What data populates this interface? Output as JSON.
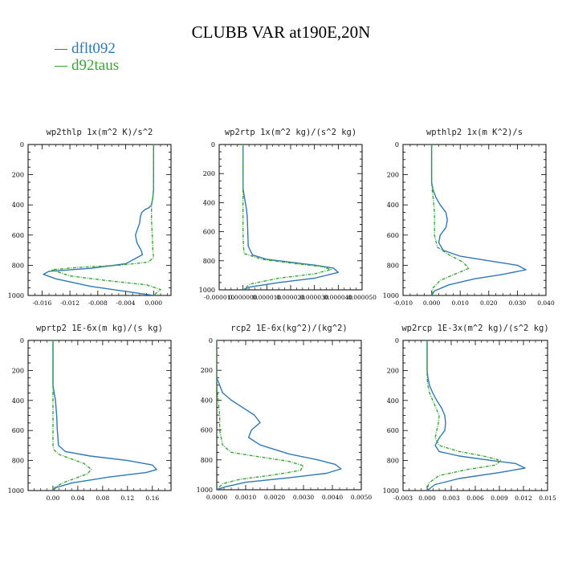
{
  "title": "CLUBB VAR at190E,20N",
  "legend": [
    {
      "label": "dflt092",
      "color": "#2f78b4"
    },
    {
      "label": "d92taus",
      "color": "#3aa535"
    }
  ],
  "chart_data": [
    {
      "type": "line",
      "title": "wp2thlp   1x(m^2 K)/s^2",
      "ylim": [
        1000,
        0
      ],
      "yticks": [
        0,
        200,
        400,
        600,
        800,
        1000
      ],
      "xlim": [
        -0.018,
        0.0025
      ],
      "xticks": [
        -0.016,
        -0.012,
        -0.008,
        -0.004,
        0.0
      ],
      "xtick_labels": [
        "-0.016",
        "-0.012",
        "-0.008",
        "-0.004",
        "0.000"
      ],
      "series": [
        {
          "name": "dflt092",
          "color": "#2f78b4",
          "dash": false,
          "x": [
            0.0,
            0.0,
            0.0,
            -0.0001,
            -0.0003,
            -0.0007,
            -0.0012,
            -0.0017,
            -0.0019,
            -0.002,
            -0.0023,
            -0.0026,
            -0.0024,
            -0.0018,
            -0.0016,
            -0.004,
            -0.009,
            -0.015,
            -0.0158,
            -0.014,
            -0.009,
            -0.003,
            0.0
          ],
          "y": [
            0,
            200,
            300,
            350,
            400,
            420,
            430,
            450,
            480,
            520,
            560,
            600,
            650,
            700,
            730,
            790,
            820,
            840,
            860,
            890,
            940,
            980,
            1000
          ]
        },
        {
          "name": "d92taus",
          "color": "#3aa535",
          "dash": true,
          "x": [
            0.0,
            0.0,
            0.0,
            -0.0001,
            -0.0003,
            -0.0003,
            -0.0003,
            -0.0002,
            -0.0001,
            0.0,
            -0.0008,
            -0.005,
            -0.011,
            -0.0147,
            -0.012,
            -0.007,
            -0.001,
            0.001,
            0.0
          ],
          "y": [
            0,
            200,
            300,
            350,
            400,
            450,
            500,
            600,
            700,
            750,
            780,
            800,
            815,
            830,
            870,
            900,
            930,
            960,
            1000
          ]
        }
      ]
    },
    {
      "type": "line",
      "title": "wp2rtp   1x(m^2 kg)/(s^2 kg)",
      "ylim": [
        1000,
        0
      ],
      "yticks": [
        0,
        200,
        400,
        600,
        800,
        1000
      ],
      "xlim": [
        -1e-05,
        5e-05
      ],
      "xticks": [
        -1e-05,
        0.0,
        1e-05,
        2e-05,
        3e-05,
        4e-05,
        5e-05
      ],
      "xtick_labels": [
        "-0.000010",
        "0.000000",
        "0.000010",
        "0.000020",
        "0.000030",
        "0.000040",
        "0.000050"
      ],
      "series": [
        {
          "name": "dflt092",
          "color": "#2f78b4",
          "dash": false,
          "x": [
            0.0,
            0.0,
            0.0,
            5e-07,
            1e-06,
            1.5e-06,
            1.8e-06,
            2e-06,
            2.2e-06,
            4e-06,
            1e-05,
            2e-05,
            3e-05,
            3.8e-05,
            4e-05,
            3e-05,
            1.5e-05,
            3e-06,
            0.0
          ],
          "y": [
            0,
            200,
            300,
            350,
            400,
            450,
            500,
            600,
            700,
            760,
            790,
            810,
            830,
            850,
            880,
            920,
            950,
            980,
            1000
          ]
        },
        {
          "name": "d92taus",
          "color": "#3aa535",
          "dash": true,
          "x": [
            0.0,
            0.0,
            0.0,
            0.0,
            0.0,
            0.0,
            0.0,
            2e-07,
            5e-07,
            8e-06,
            2.2e-05,
            3.3e-05,
            3.7e-05,
            3e-05,
            1.5e-05,
            3e-06,
            0.0
          ],
          "y": [
            0,
            200,
            300,
            350,
            400,
            500,
            600,
            700,
            750,
            790,
            820,
            840,
            860,
            890,
            920,
            960,
            1000
          ]
        }
      ]
    },
    {
      "type": "line",
      "title": "wpthlp2   1x(m K^2)/s",
      "ylim": [
        1000,
        0
      ],
      "yticks": [
        0,
        200,
        400,
        600,
        800,
        1000
      ],
      "xlim": [
        -0.01,
        0.04
      ],
      "xticks": [
        -0.01,
        0.0,
        0.01,
        0.02,
        0.03,
        0.04
      ],
      "xtick_labels": [
        "-0.010",
        "0.000",
        "0.010",
        "0.020",
        "0.030",
        "0.040"
      ],
      "series": [
        {
          "name": "dflt092",
          "color": "#2f78b4",
          "dash": false,
          "x": [
            0.0,
            0.0,
            0.0,
            0.0005,
            0.0015,
            0.003,
            0.005,
            0.0055,
            0.005,
            0.003,
            0.0025,
            0.004,
            0.01,
            0.02,
            0.03,
            0.033,
            0.025,
            0.015,
            0.006,
            0.001,
            0.0
          ],
          "y": [
            0,
            200,
            250,
            300,
            350,
            400,
            450,
            500,
            550,
            600,
            650,
            700,
            740,
            770,
            800,
            830,
            860,
            890,
            930,
            970,
            1000
          ]
        },
        {
          "name": "d92taus",
          "color": "#3aa535",
          "dash": true,
          "x": [
            0.0,
            0.0,
            0.0,
            0.0002,
            0.0005,
            0.0008,
            0.001,
            0.001,
            0.001,
            0.002,
            0.006,
            0.011,
            0.013,
            0.008,
            0.003,
            0.0005,
            0.0
          ],
          "y": [
            0,
            200,
            250,
            300,
            350,
            400,
            450,
            500,
            600,
            680,
            730,
            780,
            820,
            860,
            900,
            950,
            1000
          ]
        }
      ]
    },
    {
      "type": "line",
      "title": "wprtp2   1E-6x(m kg)/(s kg)",
      "ylim": [
        1000,
        0
      ],
      "yticks": [
        0,
        200,
        400,
        600,
        800,
        1000
      ],
      "xlim": [
        -0.04,
        0.19
      ],
      "xticks": [
        0.0,
        0.04,
        0.08,
        0.12,
        0.16
      ],
      "xtick_labels": [
        "0.00",
        "0.04",
        "0.08",
        "0.12",
        "0.16"
      ],
      "series": [
        {
          "name": "dflt092",
          "color": "#2f78b4",
          "dash": false,
          "x": [
            0.0,
            0.0,
            0.0,
            0.002,
            0.004,
            0.005,
            0.006,
            0.007,
            0.009,
            0.02,
            0.06,
            0.12,
            0.16,
            0.167,
            0.15,
            0.09,
            0.03,
            0.005,
            0.0
          ],
          "y": [
            0,
            200,
            300,
            350,
            400,
            450,
            500,
            600,
            700,
            740,
            770,
            800,
            830,
            860,
            880,
            910,
            950,
            980,
            1000
          ]
        },
        {
          "name": "d92taus",
          "color": "#3aa535",
          "dash": true,
          "x": [
            0.0,
            0.0,
            0.0,
            0.0,
            0.0,
            0.0,
            0.0,
            0.0,
            0.0,
            0.002,
            0.01,
            0.03,
            0.05,
            0.062,
            0.055,
            0.035,
            0.015,
            0.003,
            0.0
          ],
          "y": [
            0,
            200,
            300,
            350,
            400,
            450,
            500,
            600,
            700,
            730,
            760,
            790,
            820,
            860,
            890,
            920,
            950,
            980,
            1000
          ]
        }
      ]
    },
    {
      "type": "line",
      "title": "rcp2   1E-6x(kg^2)/(kg^2)",
      "ylim": [
        1000,
        0
      ],
      "yticks": [
        0,
        200,
        400,
        600,
        800,
        1000
      ],
      "xlim": [
        0.0,
        0.005
      ],
      "xticks": [
        0.0,
        0.001,
        0.002,
        0.003,
        0.004,
        0.005
      ],
      "xtick_labels": [
        "0.0000",
        "0.0010",
        "0.0020",
        "0.0030",
        "0.0040",
        "0.0050"
      ],
      "series": [
        {
          "name": "dflt092",
          "color": "#2f78b4",
          "dash": false,
          "x": [
            0.0,
            0.0,
            0.0001,
            0.0002,
            0.0005,
            0.0009,
            0.0013,
            0.0015,
            0.0012,
            0.0011,
            0.0015,
            0.0025,
            0.0035,
            0.0041,
            0.0043,
            0.0038,
            0.0025,
            0.001,
            0.0003,
            0.0
          ],
          "y": [
            0,
            250,
            300,
            350,
            400,
            450,
            500,
            550,
            600,
            650,
            700,
            760,
            800,
            830,
            860,
            890,
            920,
            950,
            980,
            1000
          ]
        },
        {
          "name": "d92taus",
          "color": "#3aa535",
          "dash": true,
          "x": [
            0.0,
            0.0,
            5e-05,
            0.0001,
            0.0001,
            0.0002,
            0.0005,
            0.0015,
            0.0025,
            0.003,
            0.0029,
            0.002,
            0.0008,
            0.0002,
            0.0
          ],
          "y": [
            0,
            300,
            400,
            500,
            600,
            700,
            750,
            780,
            810,
            840,
            870,
            900,
            930,
            960,
            1000
          ]
        }
      ]
    },
    {
      "type": "line",
      "title": "wp2rcp   1E-3x(m^2 kg)/(s^2 kg)",
      "ylim": [
        1000,
        0
      ],
      "yticks": [
        0,
        200,
        400,
        600,
        800,
        1000
      ],
      "xlim": [
        -0.003,
        0.015
      ],
      "xticks": [
        -0.003,
        0.0,
        0.003,
        0.006,
        0.009,
        0.012,
        0.015
      ],
      "xtick_labels": [
        "-0.003",
        "0.000",
        "0.003",
        "0.006",
        "0.009",
        "0.012",
        "0.015"
      ],
      "series": [
        {
          "name": "dflt092",
          "color": "#2f78b4",
          "dash": false,
          "x": [
            0.0,
            0.0,
            0.0001,
            0.0003,
            0.0007,
            0.0012,
            0.0018,
            0.0022,
            0.0023,
            0.0022,
            0.0015,
            0.001,
            0.0015,
            0.004,
            0.008,
            0.011,
            0.0122,
            0.009,
            0.004,
            0.001,
            0.0
          ],
          "y": [
            0,
            200,
            250,
            300,
            350,
            400,
            450,
            500,
            550,
            600,
            650,
            700,
            740,
            770,
            800,
            820,
            850,
            880,
            920,
            960,
            1000
          ]
        },
        {
          "name": "d92taus",
          "color": "#3aa535",
          "dash": true,
          "x": [
            0.0,
            0.0,
            0.0,
            0.0001,
            0.0003,
            0.0007,
            0.0011,
            0.0015,
            0.0014,
            0.0012,
            0.001,
            0.0015,
            0.004,
            0.007,
            0.0092,
            0.0085,
            0.005,
            0.0015,
            0.0002,
            0.0
          ],
          "y": [
            0,
            200,
            250,
            300,
            350,
            400,
            450,
            500,
            550,
            600,
            650,
            700,
            740,
            770,
            800,
            830,
            860,
            900,
            950,
            1000
          ]
        }
      ]
    }
  ]
}
